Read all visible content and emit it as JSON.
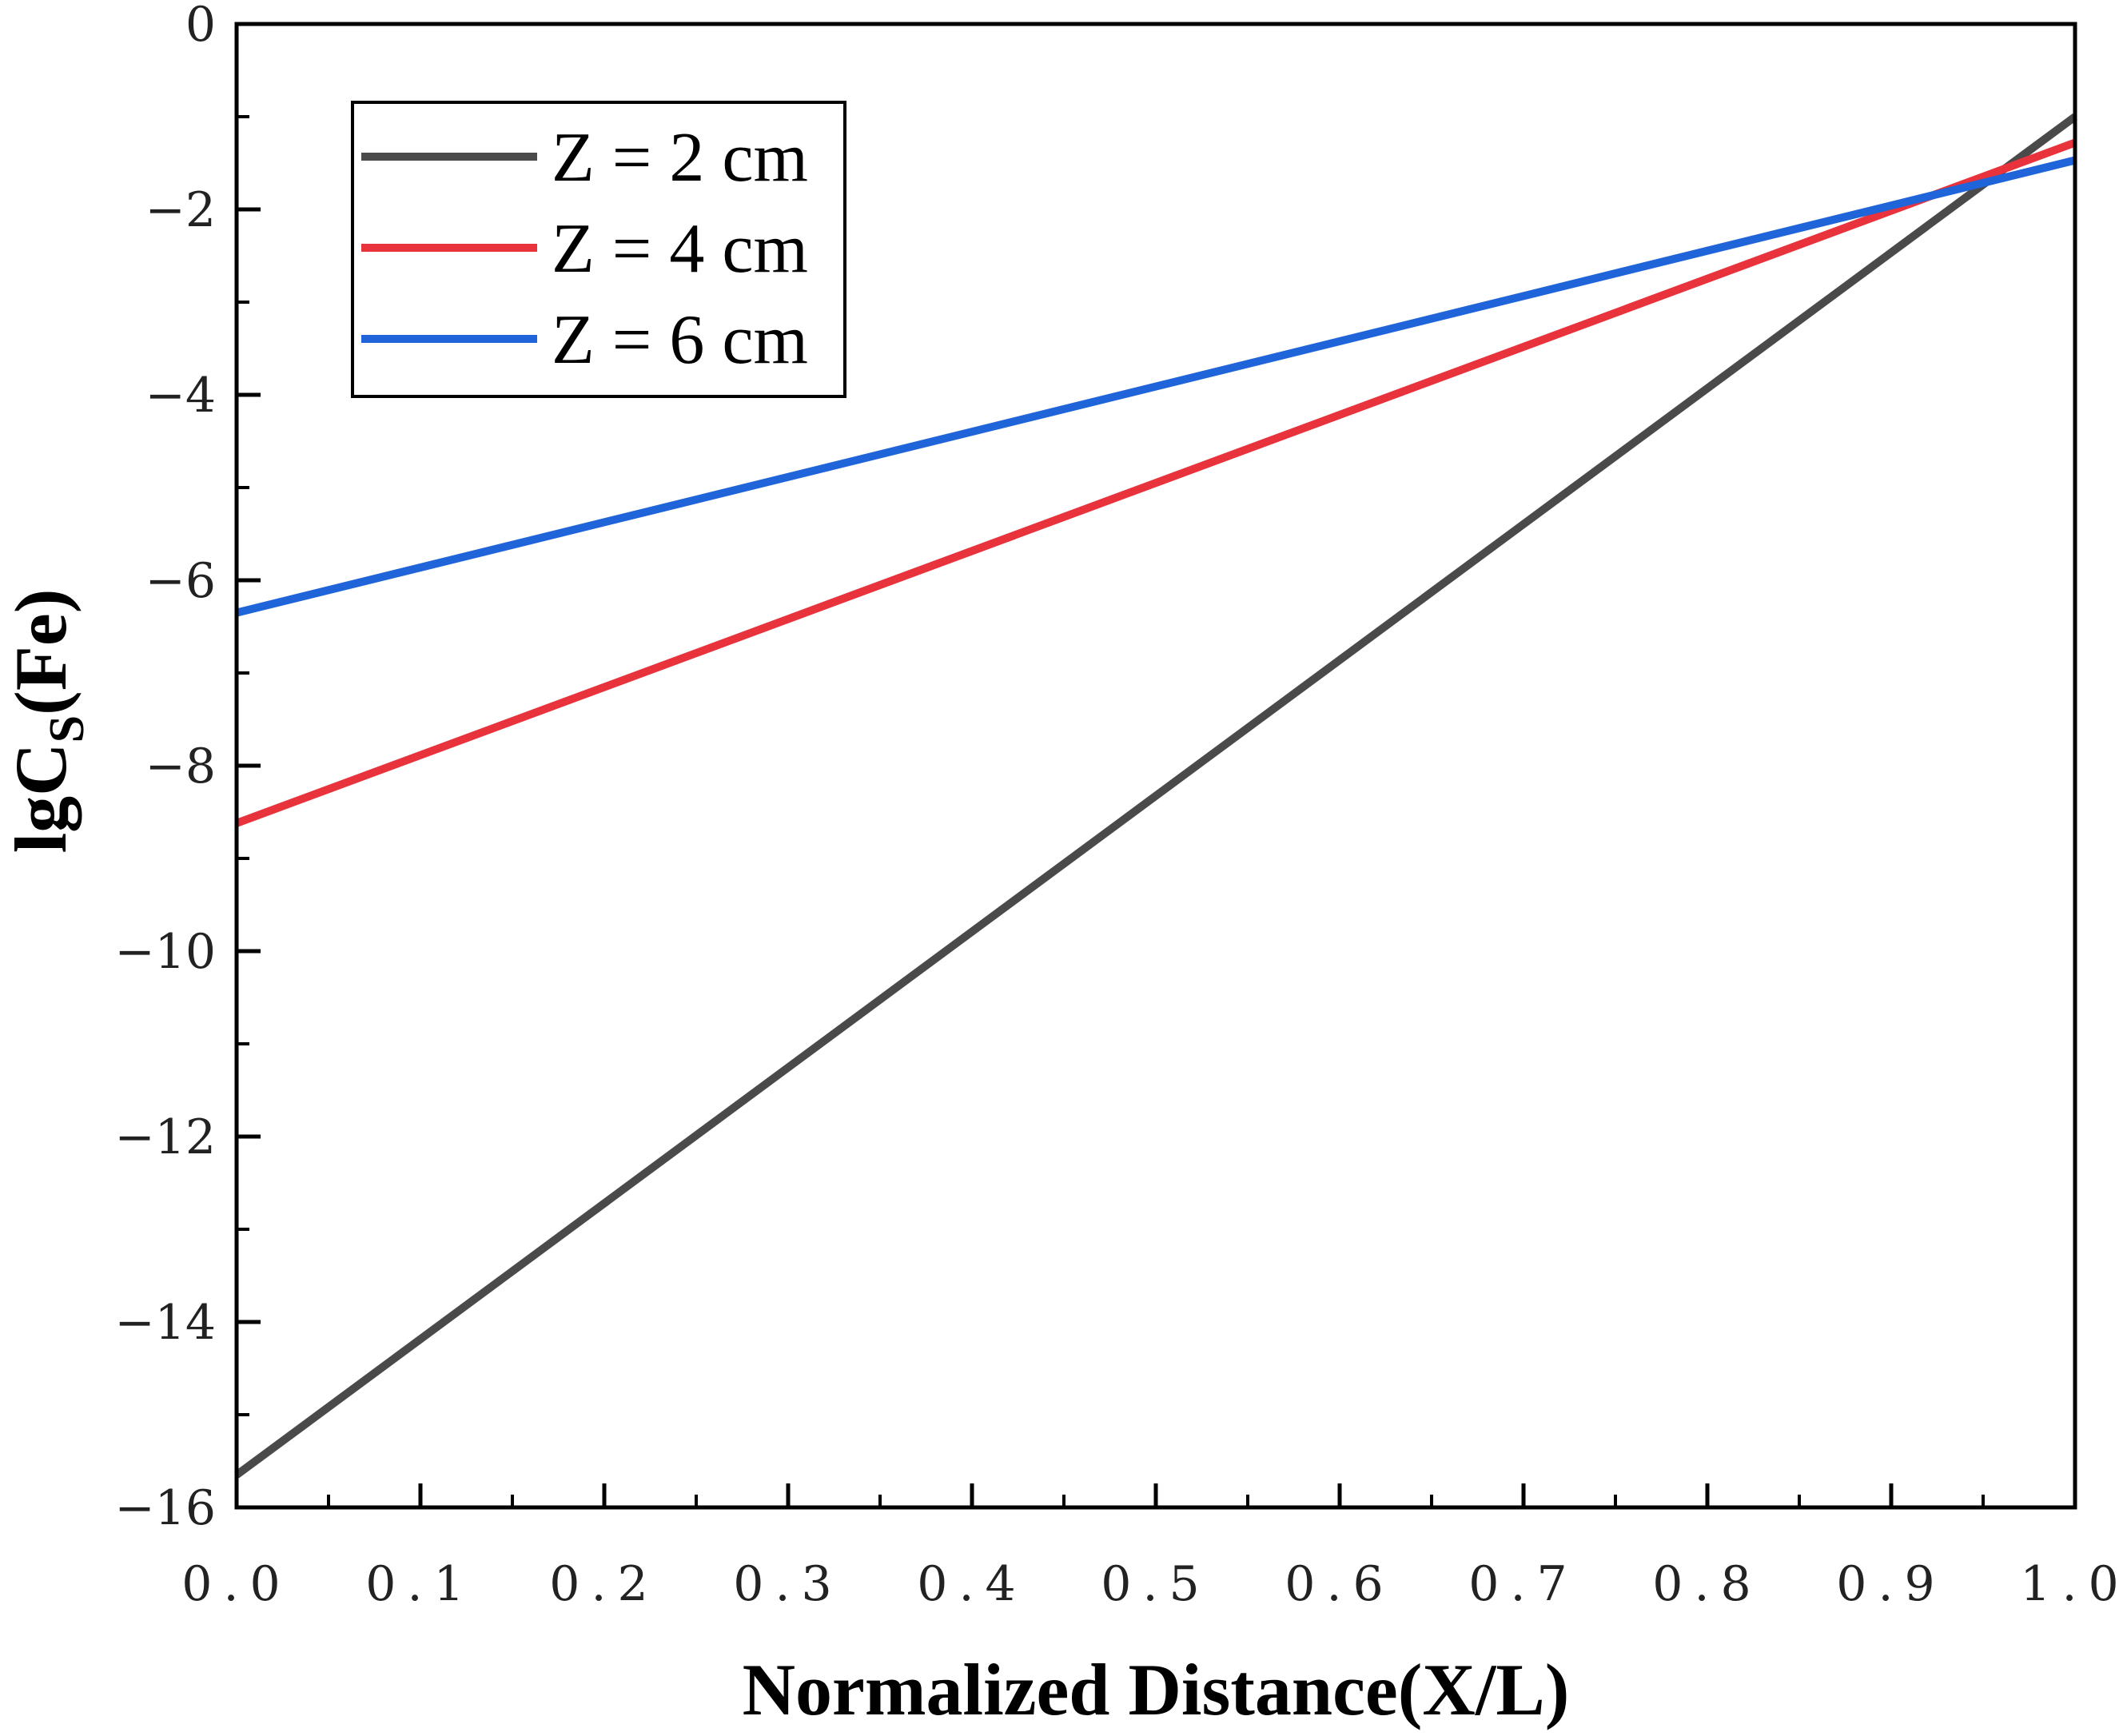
{
  "chart_data": {
    "type": "line",
    "title": "",
    "xlabel": "Normalized Distance(X/L)",
    "ylabel_main": "lgC",
    "ylabel_sub": "S",
    "ylabel_tail": "(Fe)",
    "xlim": [
      0,
      1
    ],
    "ylim": [
      -16,
      0
    ],
    "x_ticks": [
      0,
      0.1,
      0.2,
      0.3,
      0.4,
      0.5,
      0.6,
      0.7,
      0.8,
      0.9,
      1.0
    ],
    "x_tick_labels": [
      "0.0",
      "0.1",
      "0.2",
      "0.3",
      "0.4",
      "0.5",
      "0.6",
      "0.7",
      "0.8",
      "0.9",
      "1.0"
    ],
    "y_ticks": [
      0,
      -2,
      -4,
      -6,
      -8,
      -10,
      -12,
      -14,
      -16
    ],
    "y_tick_labels": [
      "0",
      "−2",
      "−4",
      "−6",
      "−8",
      "−10",
      "−12",
      "−14",
      "−16"
    ],
    "grid": false,
    "legend_position": "top-left",
    "series": [
      {
        "name": "Z = 2 cm",
        "color": "#4a4a4a",
        "x": [
          0,
          1
        ],
        "y": [
          -15.65,
          -1.0
        ]
      },
      {
        "name": "Z = 4 cm",
        "color": "#e8323c",
        "x": [
          0,
          1
        ],
        "y": [
          -8.62,
          -1.28
        ]
      },
      {
        "name": "Z = 6 cm",
        "color": "#1f64d8",
        "x": [
          0,
          1
        ],
        "y": [
          -6.35,
          -1.47
        ]
      }
    ]
  }
}
